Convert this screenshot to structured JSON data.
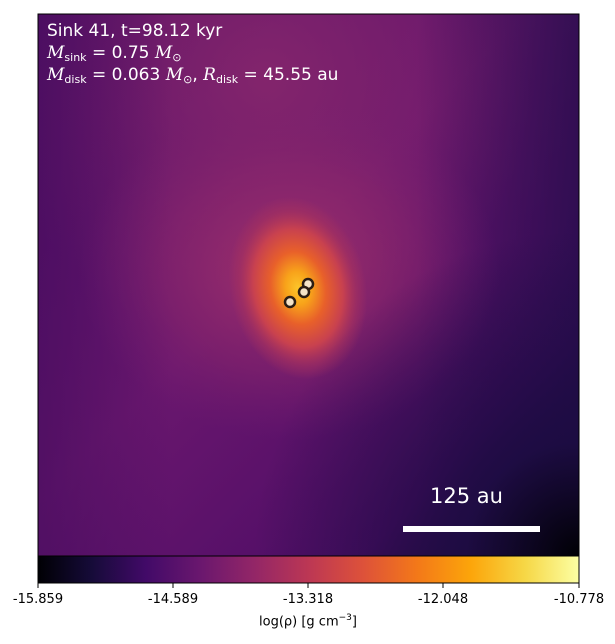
{
  "info": {
    "sink_line": "Sink 41, t=98.12 kyr",
    "msink_symbol": "M",
    "msink_sub": "sink",
    "msink_value": "= 0.75",
    "msink_unit": "M",
    "msink_unit_sub": "⊙",
    "mdisk_symbol": "M",
    "mdisk_sub": "disk",
    "mdisk_value": "= 0.063",
    "mdisk_unit": "M",
    "mdisk_unit_sub": "⊙",
    "rdisk_symbol": "R",
    "rdisk_sub": "disk",
    "rdisk_value": "= 45.55 au"
  },
  "scale_bar": {
    "label": "125 au"
  },
  "colorbar": {
    "colormap": "inferno",
    "ticks": [
      "-15.859",
      "-14.589",
      "-13.318",
      "-12.048",
      "-10.778"
    ],
    "label_prefix": "log(ρ) [g cm",
    "label_exp": "−3",
    "label_suffix": "]"
  },
  "colors": {
    "background_dark": "#2a0b55",
    "halo": "#8a2a6e",
    "core": "#fbb32e",
    "sink_marker": "#f4e3c8",
    "sink_edge": "#2b1d14"
  }
}
